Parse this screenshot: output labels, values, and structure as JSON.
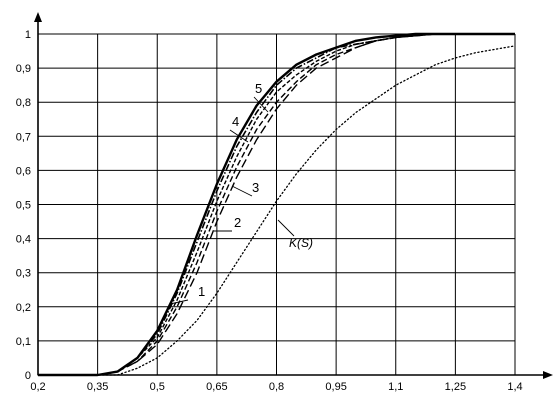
{
  "chart_data": {
    "type": "line",
    "title": "",
    "xlabel": "",
    "ylabel": "",
    "xlim": [
      0.2,
      1.4
    ],
    "ylim": [
      0,
      1
    ],
    "grid": true,
    "x_ticks": [
      "0,2",
      "0,35",
      "0,5",
      "0,65",
      "0,8",
      "0,95",
      "1,1",
      "1,25",
      "1,4"
    ],
    "y_ticks": [
      "0",
      "0,1",
      "0,2",
      "0,3",
      "0,4",
      "0,5",
      "0,6",
      "0,7",
      "0,8",
      "0,9",
      "1"
    ],
    "series": [
      {
        "name": "1",
        "style": "long-dash",
        "x": [
          0.35,
          0.4,
          0.45,
          0.5,
          0.55,
          0.6,
          0.65,
          0.7,
          0.75,
          0.8,
          0.85,
          0.9,
          0.95,
          1.0,
          1.05,
          1.1,
          1.15,
          1.2,
          1.25,
          1.3,
          1.35,
          1.4
        ],
        "y": [
          0.0,
          0.01,
          0.04,
          0.09,
          0.18,
          0.3,
          0.45,
          0.58,
          0.69,
          0.78,
          0.85,
          0.9,
          0.93,
          0.96,
          0.98,
          0.99,
          0.995,
          1.0,
          1.0,
          1.0,
          1.0,
          1.0
        ]
      },
      {
        "name": "2",
        "style": "dash",
        "x": [
          0.35,
          0.4,
          0.45,
          0.5,
          0.55,
          0.6,
          0.65,
          0.7,
          0.75,
          0.8,
          0.85,
          0.9,
          0.95,
          1.0,
          1.05,
          1.1,
          1.15,
          1.2,
          1.25,
          1.3,
          1.35,
          1.4
        ],
        "y": [
          0.0,
          0.01,
          0.04,
          0.1,
          0.2,
          0.33,
          0.48,
          0.61,
          0.72,
          0.8,
          0.86,
          0.91,
          0.94,
          0.96,
          0.98,
          0.99,
          0.995,
          1.0,
          1.0,
          1.0,
          1.0,
          1.0
        ]
      },
      {
        "name": "3",
        "style": "short-dash",
        "x": [
          0.35,
          0.4,
          0.45,
          0.5,
          0.55,
          0.6,
          0.65,
          0.7,
          0.75,
          0.8,
          0.85,
          0.9,
          0.95,
          1.0,
          1.05,
          1.1,
          1.15,
          1.2,
          1.25,
          1.3,
          1.35,
          1.4
        ],
        "y": [
          0.0,
          0.01,
          0.05,
          0.11,
          0.22,
          0.36,
          0.51,
          0.64,
          0.75,
          0.83,
          0.88,
          0.92,
          0.95,
          0.97,
          0.98,
          0.99,
          0.995,
          1.0,
          1.0,
          1.0,
          1.0,
          1.0
        ]
      },
      {
        "name": "4",
        "style": "dash-dot",
        "x": [
          0.35,
          0.4,
          0.45,
          0.5,
          0.55,
          0.6,
          0.65,
          0.7,
          0.75,
          0.8,
          0.85,
          0.9,
          0.95,
          1.0,
          1.05,
          1.1,
          1.15,
          1.2,
          1.25,
          1.3,
          1.35,
          1.4
        ],
        "y": [
          0.0,
          0.01,
          0.05,
          0.12,
          0.24,
          0.39,
          0.54,
          0.67,
          0.77,
          0.85,
          0.9,
          0.93,
          0.96,
          0.97,
          0.98,
          0.99,
          0.995,
          1.0,
          1.0,
          1.0,
          1.0,
          1.0
        ]
      },
      {
        "name": "5",
        "style": "solid-bold",
        "x": [
          0.35,
          0.4,
          0.45,
          0.5,
          0.55,
          0.6,
          0.65,
          0.7,
          0.75,
          0.8,
          0.85,
          0.9,
          0.95,
          1.0,
          1.05,
          1.1,
          1.15,
          1.2,
          1.25,
          1.3,
          1.35,
          1.4
        ],
        "y": [
          0.0,
          0.01,
          0.05,
          0.13,
          0.25,
          0.41,
          0.56,
          0.69,
          0.79,
          0.86,
          0.91,
          0.94,
          0.96,
          0.98,
          0.99,
          0.995,
          1.0,
          1.0,
          1.0,
          1.0,
          1.0,
          1.0
        ]
      },
      {
        "name": "K(S)",
        "style": "dotted",
        "x": [
          0.35,
          0.4,
          0.45,
          0.5,
          0.55,
          0.6,
          0.65,
          0.7,
          0.75,
          0.8,
          0.85,
          0.9,
          0.95,
          1.0,
          1.05,
          1.1,
          1.15,
          1.2,
          1.25,
          1.3,
          1.35,
          1.4
        ],
        "y": [
          0.0,
          0.0,
          0.02,
          0.05,
          0.1,
          0.16,
          0.24,
          0.33,
          0.42,
          0.51,
          0.59,
          0.66,
          0.72,
          0.77,
          0.81,
          0.85,
          0.88,
          0.91,
          0.93,
          0.945,
          0.955,
          0.965
        ]
      }
    ],
    "annotations": [
      {
        "text": "1",
        "series": "1"
      },
      {
        "text": "2",
        "series": "2"
      },
      {
        "text": "3",
        "series": "3"
      },
      {
        "text": "4",
        "series": "4"
      },
      {
        "text": "5",
        "series": "5"
      },
      {
        "text": "K(S)",
        "series": "K(S)"
      }
    ]
  }
}
